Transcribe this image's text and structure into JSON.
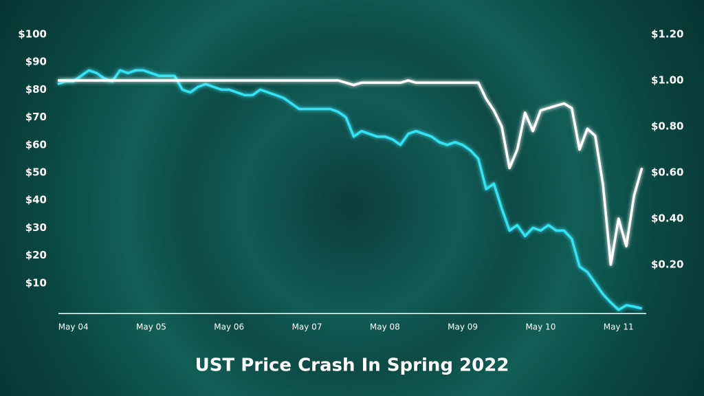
{
  "chart_data": {
    "type": "line",
    "title": "UST Price Crash In Spring 2022",
    "x": [
      -0.2,
      -0.1,
      0.0,
      0.1,
      0.2,
      0.3,
      0.4,
      0.5,
      0.6,
      0.7,
      0.8,
      0.9,
      1.0,
      1.1,
      1.2,
      1.3,
      1.4,
      1.5,
      1.6,
      1.7,
      1.8,
      1.9,
      2.0,
      2.1,
      2.2,
      2.3,
      2.4,
      2.5,
      2.6,
      2.7,
      2.8,
      2.9,
      3.0,
      3.1,
      3.2,
      3.3,
      3.4,
      3.5,
      3.6,
      3.7,
      3.8,
      3.9,
      4.0,
      4.1,
      4.2,
      4.3,
      4.4,
      4.5,
      4.6,
      4.7,
      4.8,
      4.9,
      5.0,
      5.1,
      5.2,
      5.3,
      5.4,
      5.5,
      5.6,
      5.7,
      5.8,
      5.9,
      6.0,
      6.1,
      6.2,
      6.3,
      6.4,
      6.5,
      6.6,
      6.7,
      6.8,
      6.9,
      7.0,
      7.1,
      7.2,
      7.3
    ],
    "xlim": [
      -0.2,
      7.4
    ],
    "xticks": [
      {
        "value": 0,
        "label": "May 04"
      },
      {
        "value": 1,
        "label": "May 05"
      },
      {
        "value": 2,
        "label": "May 06"
      },
      {
        "value": 3,
        "label": "May 07"
      },
      {
        "value": 4,
        "label": "May 08"
      },
      {
        "value": 5,
        "label": "May 09"
      },
      {
        "value": 6,
        "label": "May 10"
      },
      {
        "value": 7,
        "label": "May 11"
      }
    ],
    "ylim": [
      0,
      100
    ],
    "yticks": [
      {
        "value": 10,
        "label": "$10"
      },
      {
        "value": 20,
        "label": "$20"
      },
      {
        "value": 30,
        "label": "$30"
      },
      {
        "value": 40,
        "label": "$40"
      },
      {
        "value": 50,
        "label": "$50"
      },
      {
        "value": 60,
        "label": "$60"
      },
      {
        "value": 70,
        "label": "$70"
      },
      {
        "value": 80,
        "label": "$80"
      },
      {
        "value": 90,
        "label": "$90"
      },
      {
        "value": 100,
        "label": "$100"
      }
    ],
    "y2lim": [
      0,
      1.2
    ],
    "y2ticks": [
      {
        "value": 0.2,
        "label": "$0.20"
      },
      {
        "value": 0.4,
        "label": "$0.40"
      },
      {
        "value": 0.6,
        "label": "$0.60"
      },
      {
        "value": 0.8,
        "label": "$0.80"
      },
      {
        "value": 1.0,
        "label": "$1.00"
      },
      {
        "value": 1.2,
        "label": "$1.20"
      }
    ],
    "series": [
      {
        "color": "#35e2f2",
        "values": [
          82,
          83,
          83,
          85,
          87,
          86,
          84,
          83,
          87,
          86,
          87,
          87,
          86,
          85,
          85,
          85,
          80,
          79,
          81,
          82,
          81,
          80,
          80,
          79,
          78,
          78,
          80,
          79,
          78,
          77,
          75,
          73,
          73,
          73,
          73,
          73,
          72,
          70,
          63,
          65,
          64,
          63,
          63,
          62,
          60,
          64,
          65,
          64,
          63,
          61,
          60,
          61,
          60,
          58,
          55,
          44,
          46,
          37,
          29,
          31,
          27,
          30,
          29,
          31,
          29,
          29,
          26,
          16,
          14,
          10,
          6,
          3,
          0.3,
          2,
          1.5,
          0.8
        ]
      },
      {
        "color": "#ffffff",
        "axis": "y2",
        "values": [
          1.0,
          1.0,
          1.0,
          1.0,
          1.0,
          1.0,
          1.0,
          1.0,
          1.0,
          1.0,
          1.0,
          1.0,
          1.0,
          1.0,
          1.0,
          1.0,
          1.0,
          1.0,
          1.0,
          1.0,
          1.0,
          1.0,
          1.0,
          1.0,
          1.0,
          1.0,
          1.0,
          1.0,
          1.0,
          1.0,
          1.0,
          1.0,
          1.0,
          1.0,
          1.0,
          1.0,
          1.0,
          0.99,
          0.98,
          0.99,
          0.99,
          0.99,
          0.99,
          0.99,
          0.99,
          1.0,
          0.99,
          0.99,
          0.99,
          0.99,
          0.99,
          0.99,
          0.99,
          0.99,
          0.99,
          0.92,
          0.87,
          0.8,
          0.62,
          0.7,
          0.86,
          0.78,
          0.87,
          0.88,
          0.89,
          0.9,
          0.88,
          0.7,
          0.79,
          0.76,
          0.55,
          0.2,
          0.4,
          0.28,
          0.5,
          0.62
        ]
      }
    ]
  }
}
